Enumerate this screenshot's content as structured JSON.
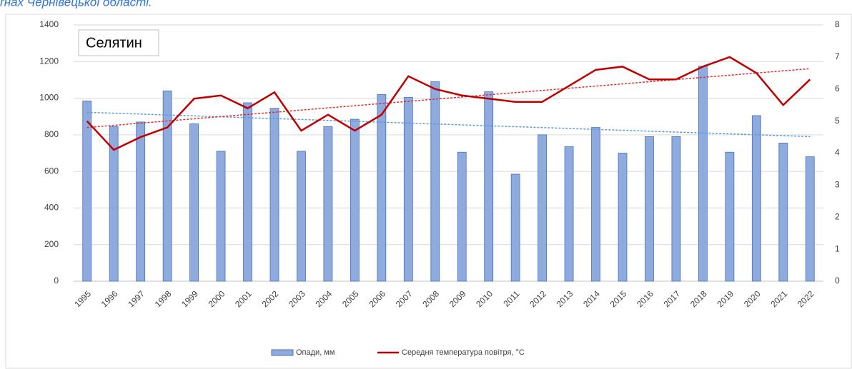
{
  "caption": "ґнах Чернівецької області.",
  "chart_data": {
    "type": "bar_line",
    "title": "Селятин",
    "categories": [
      "1995",
      "1996",
      "1997",
      "1998",
      "1999",
      "2000",
      "2001",
      "2002",
      "2003",
      "2004",
      "2005",
      "2006",
      "2007",
      "2008",
      "2009",
      "2010",
      "2011",
      "2012",
      "2013",
      "2014",
      "2015",
      "2016",
      "2017",
      "2018",
      "2019",
      "2020",
      "2021",
      "2022"
    ],
    "series": [
      {
        "name": "Опади, мм",
        "type": "bar",
        "color": "#8faadc",
        "edge": "#4472c4",
        "trend_color": "#5b9bd5",
        "values": [
          985,
          845,
          870,
          1040,
          860,
          710,
          975,
          945,
          710,
          845,
          885,
          1020,
          1005,
          1090,
          705,
          1035,
          585,
          800,
          735,
          840,
          700,
          790,
          790,
          1175,
          705,
          905,
          755,
          680
        ]
      },
      {
        "name": "Середня температура повітря, °С",
        "type": "line",
        "axis": "y2",
        "color": "#c00000",
        "trend_color": "#e03030",
        "values": [
          5.0,
          4.1,
          4.5,
          4.8,
          5.7,
          5.8,
          5.4,
          5.9,
          4.7,
          5.2,
          4.7,
          5.2,
          6.4,
          6.0,
          5.8,
          5.7,
          5.6,
          5.6,
          6.1,
          6.6,
          6.7,
          6.3,
          6.3,
          6.7,
          7.0,
          6.5,
          5.5,
          6.3
        ]
      }
    ],
    "ylim": [
      0,
      1400
    ],
    "yticks": [
      0,
      200,
      400,
      600,
      800,
      1000,
      1200,
      1400
    ],
    "y2lim": [
      0,
      8
    ],
    "y2ticks": [
      0,
      1,
      2,
      3,
      4,
      5,
      6,
      7,
      8
    ],
    "grid": true,
    "legend": "bottom"
  }
}
